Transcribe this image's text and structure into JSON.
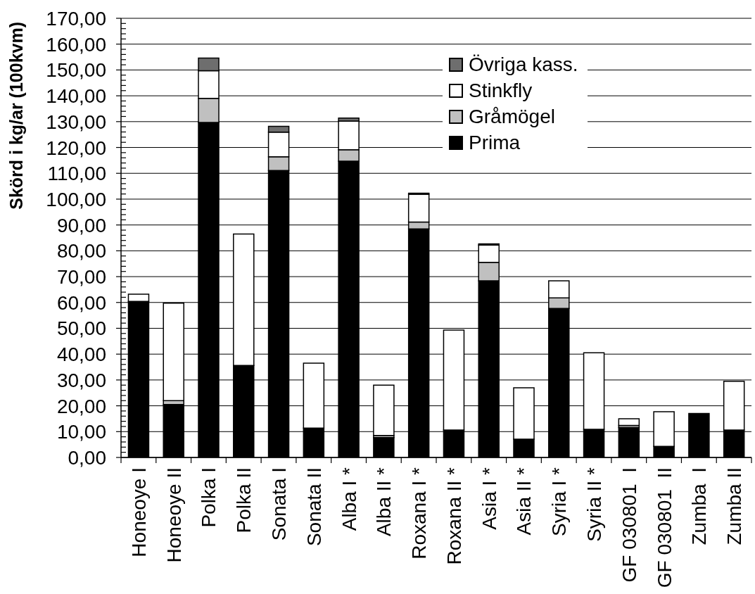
{
  "chart_data": {
    "type": "bar",
    "ylabel": "Skörd i kg/ar (100kvm)",
    "categories": [
      "Honeoye I",
      "Honeoye II",
      "Polka I",
      "Polka II",
      "Sonata I",
      "Sonata II",
      "Alba I *",
      "Alba II *",
      "Roxana I *",
      "Roxana II *",
      "Asia I *",
      "Asia II *",
      "Syria I *",
      "Syria II *",
      "GF 030801  I",
      "GF 030801  II",
      "Zumba  I",
      "Zumba II"
    ],
    "series": [
      {
        "name": "Prima",
        "color": "#000000",
        "values": [
          60.4,
          20.5,
          129.7,
          35.6,
          111.1,
          11.4,
          114.7,
          7.7,
          88.5,
          10.6,
          68.4,
          7.1,
          57.7,
          10.9,
          11.6,
          4.3,
          17.0,
          10.6
        ]
      },
      {
        "name": "Gråmögel",
        "color": "#c0c0c0",
        "values": [
          0,
          1.5,
          9.3,
          0,
          5.3,
          0,
          4.4,
          0.8,
          2.6,
          0,
          7.1,
          0,
          4.1,
          0,
          0.8,
          0,
          0,
          0
        ]
      },
      {
        "name": "Stinkfly",
        "color": "#ffffff",
        "values": [
          2.8,
          37.7,
          10.7,
          50.9,
          9.5,
          25.1,
          11.1,
          19.5,
          10.8,
          38.7,
          6.7,
          19.9,
          6.6,
          29.6,
          2.6,
          13.4,
          0,
          18.9
        ]
      },
      {
        "name": "Övriga kass.",
        "color": "#6e6e6e",
        "values": [
          0,
          0,
          4.9,
          0,
          2.3,
          0,
          1.2,
          0,
          0.4,
          0,
          0.5,
          0,
          0,
          0,
          0,
          0,
          0,
          0
        ]
      }
    ],
    "stacked": true,
    "ylim": [
      0,
      170
    ],
    "yticks": [
      {
        "value": 0,
        "label": "0,00"
      },
      {
        "value": 2,
        "label": null
      },
      {
        "value": 4,
        "label": null
      },
      {
        "value": 6,
        "label": null
      },
      {
        "value": 8,
        "label": null
      },
      {
        "value": 10,
        "label": "10,00"
      },
      {
        "value": 12,
        "label": null
      },
      {
        "value": 14,
        "label": null
      },
      {
        "value": 16,
        "label": null
      },
      {
        "value": 18,
        "label": null
      },
      {
        "value": 20,
        "label": "20,00"
      },
      {
        "value": 22,
        "label": null
      },
      {
        "value": 24,
        "label": null
      },
      {
        "value": 26,
        "label": null
      },
      {
        "value": 28,
        "label": null
      },
      {
        "value": 30,
        "label": "30,00"
      },
      {
        "value": 32,
        "label": null
      },
      {
        "value": 34,
        "label": null
      },
      {
        "value": 36,
        "label": null
      },
      {
        "value": 38,
        "label": null
      },
      {
        "value": 40,
        "label": "40,00"
      },
      {
        "value": 42,
        "label": null
      },
      {
        "value": 44,
        "label": null
      },
      {
        "value": 46,
        "label": null
      },
      {
        "value": 48,
        "label": null
      },
      {
        "value": 50,
        "label": "50,00"
      },
      {
        "value": 52,
        "label": null
      },
      {
        "value": 54,
        "label": null
      },
      {
        "value": 56,
        "label": null
      },
      {
        "value": 58,
        "label": null
      },
      {
        "value": 60,
        "label": "60,00"
      },
      {
        "value": 62,
        "label": null
      },
      {
        "value": 64,
        "label": null
      },
      {
        "value": 66,
        "label": null
      },
      {
        "value": 68,
        "label": null
      },
      {
        "value": 70,
        "label": "70,00"
      },
      {
        "value": 72,
        "label": null
      },
      {
        "value": 74,
        "label": null
      },
      {
        "value": 76,
        "label": null
      },
      {
        "value": 78,
        "label": null
      },
      {
        "value": 80,
        "label": "80,00"
      },
      {
        "value": 82,
        "label": null
      },
      {
        "value": 84,
        "label": null
      },
      {
        "value": 86,
        "label": null
      },
      {
        "value": 88,
        "label": null
      },
      {
        "value": 90,
        "label": "90,00"
      },
      {
        "value": 92,
        "label": null
      },
      {
        "value": 94,
        "label": null
      },
      {
        "value": 96,
        "label": null
      },
      {
        "value": 98,
        "label": null
      },
      {
        "value": 100,
        "label": "100,00"
      },
      {
        "value": 102,
        "label": null
      },
      {
        "value": 104,
        "label": null
      },
      {
        "value": 106,
        "label": null
      },
      {
        "value": 108,
        "label": null
      },
      {
        "value": 110,
        "label": "110,00"
      },
      {
        "value": 112,
        "label": null
      },
      {
        "value": 114,
        "label": null
      },
      {
        "value": 116,
        "label": null
      },
      {
        "value": 118,
        "label": null
      },
      {
        "value": 120,
        "label": "120,00"
      },
      {
        "value": 122,
        "label": null
      },
      {
        "value": 124,
        "label": null
      },
      {
        "value": 126,
        "label": null
      },
      {
        "value": 128,
        "label": null
      },
      {
        "value": 130,
        "label": "130,00"
      },
      {
        "value": 132,
        "label": null
      },
      {
        "value": 134,
        "label": null
      },
      {
        "value": 136,
        "label": null
      },
      {
        "value": 138,
        "label": null
      },
      {
        "value": 140,
        "label": "140,00"
      },
      {
        "value": 142,
        "label": null
      },
      {
        "value": 144,
        "label": null
      },
      {
        "value": 146,
        "label": null
      },
      {
        "value": 148,
        "label": null
      },
      {
        "value": 150,
        "label": "150,00"
      },
      {
        "value": 152,
        "label": null
      },
      {
        "value": 154,
        "label": null
      },
      {
        "value": 156,
        "label": null
      },
      {
        "value": 158,
        "label": null
      },
      {
        "value": 160,
        "label": "160,00"
      },
      {
        "value": 162,
        "label": null
      },
      {
        "value": 164,
        "label": null
      },
      {
        "value": 166,
        "label": null
      },
      {
        "value": 168,
        "label": null
      },
      {
        "value": 170,
        "label": "170,00"
      }
    ],
    "grid": "y",
    "legend": "top right"
  }
}
